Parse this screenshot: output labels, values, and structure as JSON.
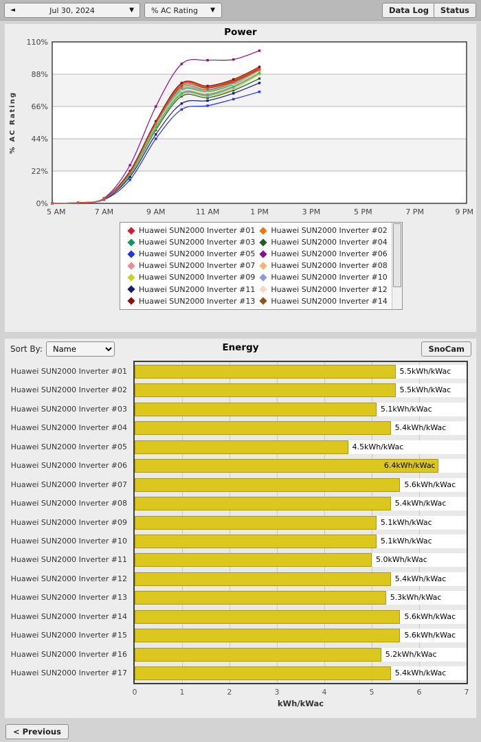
{
  "toolbar": {
    "back_arrow": "◄",
    "date": "Jul 30, 2024",
    "metric": "% AC Rating",
    "dropdown_arrow": "▼",
    "data_log": "Data Log",
    "status": "Status"
  },
  "energy_section": {
    "sort_by_label": "Sort By:",
    "sort_value": "Name",
    "snocam": "SnoCam"
  },
  "footer": {
    "previous": "< Previous"
  },
  "chart_data": [
    {
      "type": "line",
      "title": "Power",
      "ylabel": "% AC Rating",
      "ylim": [
        0,
        110
      ],
      "y_ticks": [
        0,
        22,
        44,
        66,
        88,
        110
      ],
      "y_tick_labels": [
        "0%",
        "22%",
        "44%",
        "66%",
        "88%",
        "110%"
      ],
      "x_range_hours": [
        5,
        21
      ],
      "x_tick_hours": [
        5,
        7,
        9,
        11,
        13,
        15,
        17,
        19,
        21
      ],
      "x_tick_labels": [
        "5 AM",
        "7 AM",
        "9 AM",
        "11 AM",
        "1 PM",
        "3 PM",
        "5 PM",
        "7 PM",
        "9 PM"
      ],
      "data_hours": [
        5,
        6,
        7,
        8,
        9,
        10,
        11,
        12,
        13
      ],
      "grid": "horizontal-bands",
      "legend_position": "bottom",
      "legend_visible_count": 14,
      "series": [
        {
          "name": "Huawei SUN2000 Inverter #01",
          "color": "#cc2233",
          "values": [
            0,
            0.5,
            3.2,
            21,
            55,
            81,
            79,
            83.5,
            92
          ]
        },
        {
          "name": "Huawei SUN2000 Inverter #02",
          "color": "#ee7711",
          "values": [
            0,
            0.5,
            3.2,
            21.5,
            55.5,
            81.5,
            79.5,
            84,
            92.5
          ]
        },
        {
          "name": "Huawei SUN2000 Inverter #03",
          "color": "#11995c",
          "values": [
            0,
            0.5,
            3,
            20,
            53,
            77,
            76,
            81,
            89.5
          ]
        },
        {
          "name": "Huawei SUN2000 Inverter #04",
          "color": "#1b5e20",
          "values": [
            0,
            0.4,
            3,
            19,
            50,
            73,
            72,
            77,
            85
          ]
        },
        {
          "name": "Huawei SUN2000 Inverter #05",
          "color": "#2233ee",
          "values": [
            0,
            0.3,
            2.5,
            16,
            44,
            64,
            66.5,
            71,
            76
          ]
        },
        {
          "name": "Huawei SUN2000 Inverter #06",
          "color": "#8e0a8e",
          "values": [
            0,
            0.5,
            3.5,
            26,
            66,
            95,
            97.5,
            98,
            104
          ]
        },
        {
          "name": "Huawei SUN2000 Inverter #07",
          "color": "#ee8899",
          "values": [
            0,
            0.5,
            3,
            20,
            52,
            75.5,
            74.5,
            80,
            89
          ]
        },
        {
          "name": "Huawei SUN2000 Inverter #08",
          "color": "#f5b469",
          "values": [
            0,
            0.5,
            3,
            20.5,
            53.5,
            77.5,
            76.5,
            81.5,
            90.5
          ]
        },
        {
          "name": "Huawei SUN2000 Inverter #09",
          "color": "#cfcf26",
          "values": [
            0,
            0.5,
            3,
            19,
            51,
            74,
            73,
            78,
            88
          ]
        },
        {
          "name": "Huawei SUN2000 Inverter #10",
          "color": "#8899ee",
          "values": [
            0,
            0.5,
            3,
            19.5,
            51.5,
            74.5,
            73.5,
            79,
            88.5
          ]
        },
        {
          "name": "Huawei SUN2000 Inverter #11",
          "color": "#1a1a6e",
          "values": [
            0,
            0.4,
            2.8,
            18,
            47,
            68,
            70,
            75,
            82
          ]
        },
        {
          "name": "Huawei SUN2000 Inverter #12",
          "color": "#f7d7c4",
          "values": [
            0,
            0.5,
            3,
            20,
            52.5,
            76,
            75,
            80.5,
            89.5
          ]
        },
        {
          "name": "Huawei SUN2000 Inverter #13",
          "color": "#8b1111",
          "values": [
            0,
            0.5,
            3.3,
            22,
            56,
            82,
            80,
            84.5,
            93
          ]
        },
        {
          "name": "Huawei SUN2000 Inverter #14",
          "color": "#8b5513",
          "values": [
            0,
            0.5,
            3.2,
            21,
            54,
            80,
            78.5,
            83,
            91.5
          ]
        },
        {
          "name": "Huawei SUN2000 Inverter #15",
          "color": "#2ad1c0",
          "values": [
            0,
            0.5,
            3,
            20.5,
            54,
            78,
            77,
            82,
            90.8
          ]
        },
        {
          "name": "Huawei SUN2000 Inverter #16",
          "color": "#2fcc3f",
          "values": [
            0,
            0.5,
            3,
            19.5,
            52,
            75,
            74,
            79.5,
            88.8
          ]
        },
        {
          "name": "Huawei SUN2000 Inverter #17",
          "color": "#e0524a",
          "values": [
            0,
            0.5,
            3.1,
            20.8,
            54.5,
            79,
            77.5,
            82.5,
            91
          ]
        }
      ]
    },
    {
      "type": "bar",
      "title": "Energy",
      "xlabel": "kWh/kWac",
      "xlim": [
        0,
        7
      ],
      "x_ticks": [
        0,
        1,
        2,
        3,
        4,
        5,
        6,
        7
      ],
      "bar_color": "#dcc71f",
      "categories": [
        "Huawei SUN2000 Inverter #01",
        "Huawei SUN2000 Inverter #02",
        "Huawei SUN2000 Inverter #03",
        "Huawei SUN2000 Inverter #04",
        "Huawei SUN2000 Inverter #05",
        "Huawei SUN2000 Inverter #06",
        "Huawei SUN2000 Inverter #07",
        "Huawei SUN2000 Inverter #08",
        "Huawei SUN2000 Inverter #09",
        "Huawei SUN2000 Inverter #10",
        "Huawei SUN2000 Inverter #11",
        "Huawei SUN2000 Inverter #12",
        "Huawei SUN2000 Inverter #13",
        "Huawei SUN2000 Inverter #14",
        "Huawei SUN2000 Inverter #15",
        "Huawei SUN2000 Inverter #16",
        "Huawei SUN2000 Inverter #17"
      ],
      "values": [
        5.5,
        5.5,
        5.1,
        5.4,
        4.5,
        6.4,
        5.6,
        5.4,
        5.1,
        5.1,
        5.0,
        5.4,
        5.3,
        5.6,
        5.6,
        5.2,
        5.4
      ],
      "labels": [
        "5.5kWh/kWac",
        "5.5kWh/kWac",
        "5.1kWh/kWac",
        "5.4kWh/kWac",
        "4.5kWh/kWac",
        "6.4kWh/kWac",
        "5.6kWh/kWac",
        "5.4kWh/kWac",
        "5.1kWh/kWac",
        "5.1kWh/kWac",
        "5.0kWh/kWac",
        "5.4kWh/kWac",
        "5.3kWh/kWac",
        "5.6kWh/kWac",
        "5.6kWh/kWac",
        "5.2kWh/kWac",
        "5.4kWh/kWac"
      ]
    }
  ]
}
